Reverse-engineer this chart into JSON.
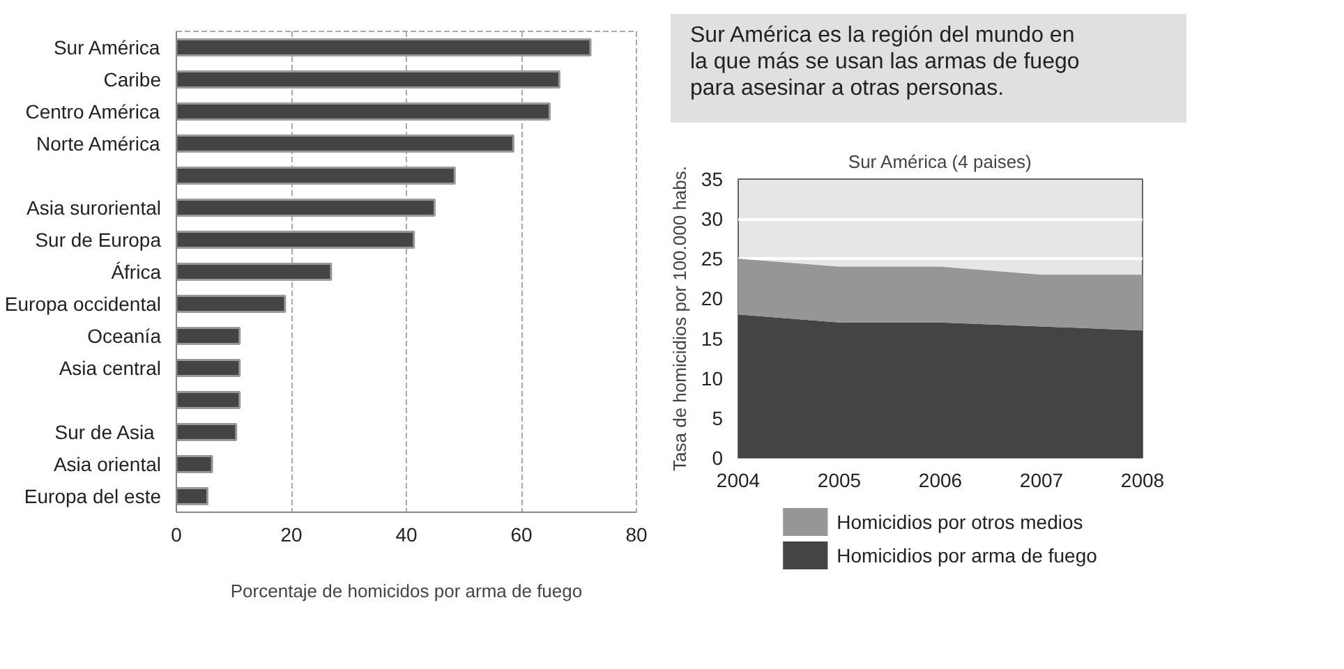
{
  "chart_data": [
    {
      "type": "bar",
      "orientation": "horizontal",
      "categories": [
        "Sur América",
        "Caribe",
        "Centro América",
        "Norte América",
        null,
        "Asia suroriental",
        "Sur de Europa",
        "África",
        "Europa occidental",
        "Oceanía",
        "Asia central",
        null,
        "Sur de  Asia",
        "Asia oriental",
        "Europa del este"
      ],
      "values": [
        72.0,
        66.6,
        64.9,
        58.6,
        48.4,
        44.9,
        41.3,
        26.9,
        18.9,
        11.0,
        11.0,
        11.0,
        10.4,
        6.2,
        5.4
      ],
      "color": "#444444",
      "xlim": [
        0,
        80
      ],
      "xticks": [
        0,
        20,
        40,
        60,
        80
      ],
      "grid": "x",
      "xlabel": "Porcentaje de homicidos por arma de fuego"
    },
    {
      "type": "area",
      "stacked": true,
      "title": "Sur América (4 paises)",
      "ylabel": "Tasa de homicidios por 100.000 habs.",
      "x": [
        2004,
        2005,
        2006,
        2007,
        2008
      ],
      "series": [
        {
          "name": "Homicidios por arma de fuego",
          "color": "#444444",
          "values": [
            18,
            17,
            17,
            16.5,
            16
          ]
        },
        {
          "name": "Homicidios  por otros medios",
          "color": "#969696",
          "values": [
            7,
            7,
            7,
            6.5,
            7
          ]
        }
      ],
      "xlim": [
        2004,
        2008
      ],
      "xticks": [
        2004,
        2005,
        2006,
        2007,
        2008
      ],
      "ylim": [
        0,
        35
      ],
      "yticks": [
        0,
        5,
        10,
        15,
        20,
        25,
        30,
        35
      ],
      "grid": "y",
      "legend": "bottom",
      "annotations": [
        "Sur América es la región del mundo en la que más se usan las armas de fuego para asesinar a otras personas."
      ]
    }
  ]
}
